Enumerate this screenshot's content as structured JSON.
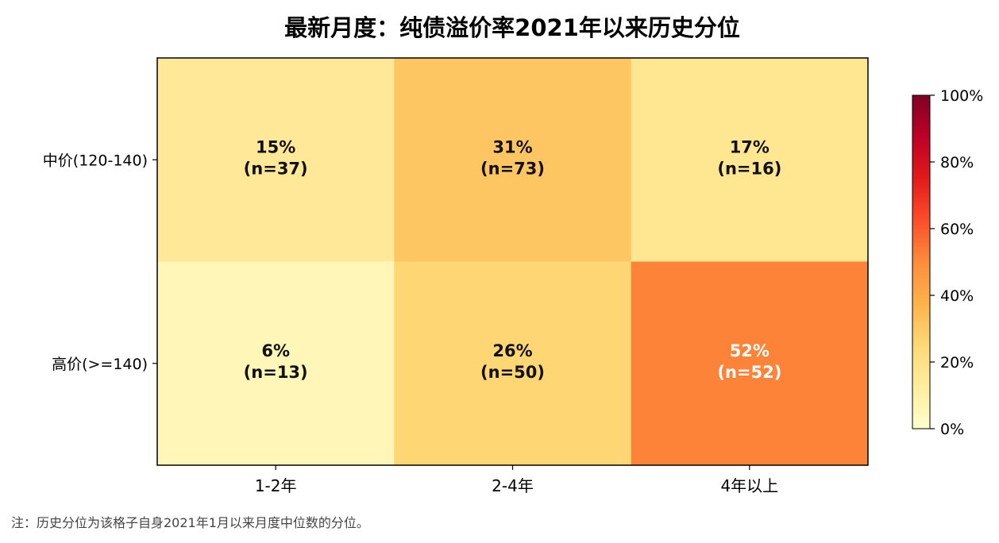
{
  "chart_data": {
    "type": "heatmap",
    "title": "最新月度：纯债溢价率2021年以来历史分位",
    "x_categories": [
      "1-2年",
      "2-4年",
      "4年以上"
    ],
    "y_categories": [
      "中价(120-140)",
      "高价(>=140)"
    ],
    "values": [
      [
        15,
        31,
        17
      ],
      [
        6,
        26,
        52
      ]
    ],
    "counts": [
      [
        37,
        73,
        16
      ],
      [
        13,
        50,
        52
      ]
    ],
    "cell_labels": [
      [
        "15%",
        "31%",
        "17%"
      ],
      [
        "6%",
        "26%",
        "52%"
      ]
    ],
    "count_labels": [
      [
        "(n=37)",
        "(n=73)",
        "(n=16)"
      ],
      [
        "(n=13)",
        "(n=50)",
        "(n=52)"
      ]
    ],
    "colorbar": {
      "range": [
        0,
        100
      ],
      "ticks": [
        0,
        20,
        40,
        60,
        80,
        100
      ],
      "tick_labels": [
        "0%",
        "20%",
        "40%",
        "60%",
        "80%",
        "100%"
      ],
      "colormap": "YlOrRd",
      "stops": [
        "#ffffcc",
        "#ffeda0",
        "#fed976",
        "#feb24c",
        "#fd8d3c",
        "#fc4e2a",
        "#e31a1c",
        "#bd0026",
        "#800026"
      ]
    }
  },
  "note": "注：历史分位为该格子自身2021年1月以来月度中位数的分位。"
}
